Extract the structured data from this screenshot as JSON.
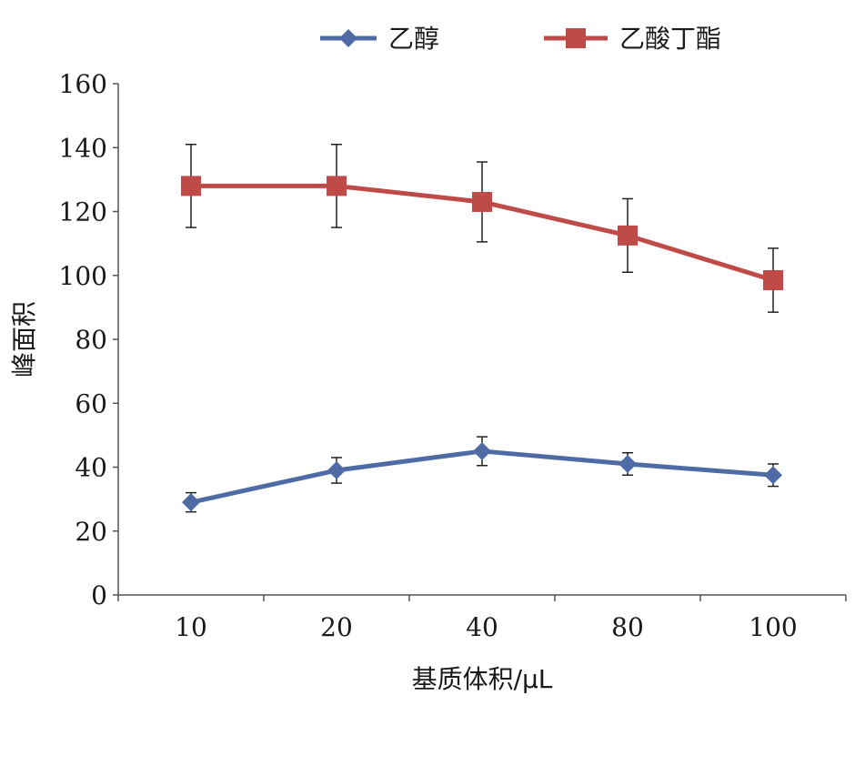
{
  "chart_data": {
    "type": "line",
    "categories": [
      "10",
      "20",
      "40",
      "80",
      "100"
    ],
    "xlabel": "基质体积/μL",
    "ylabel": "峰面积",
    "ylim": [
      0,
      160
    ],
    "yticks": [
      0,
      20,
      40,
      60,
      80,
      100,
      120,
      140,
      160
    ],
    "legend_position": "top",
    "grid": false,
    "series": [
      {
        "name": "乙醇",
        "color": "#4F6BA6",
        "marker": "diamond",
        "values": [
          29,
          39,
          45,
          41,
          37.5
        ],
        "errors": [
          3,
          4,
          4.5,
          3.5,
          3.5
        ]
      },
      {
        "name": "乙酸丁酯",
        "color": "#BE4B48",
        "marker": "square",
        "values": [
          128,
          128,
          123,
          112.5,
          98.5
        ],
        "errors": [
          13,
          13,
          12.5,
          11.5,
          10
        ]
      }
    ]
  }
}
